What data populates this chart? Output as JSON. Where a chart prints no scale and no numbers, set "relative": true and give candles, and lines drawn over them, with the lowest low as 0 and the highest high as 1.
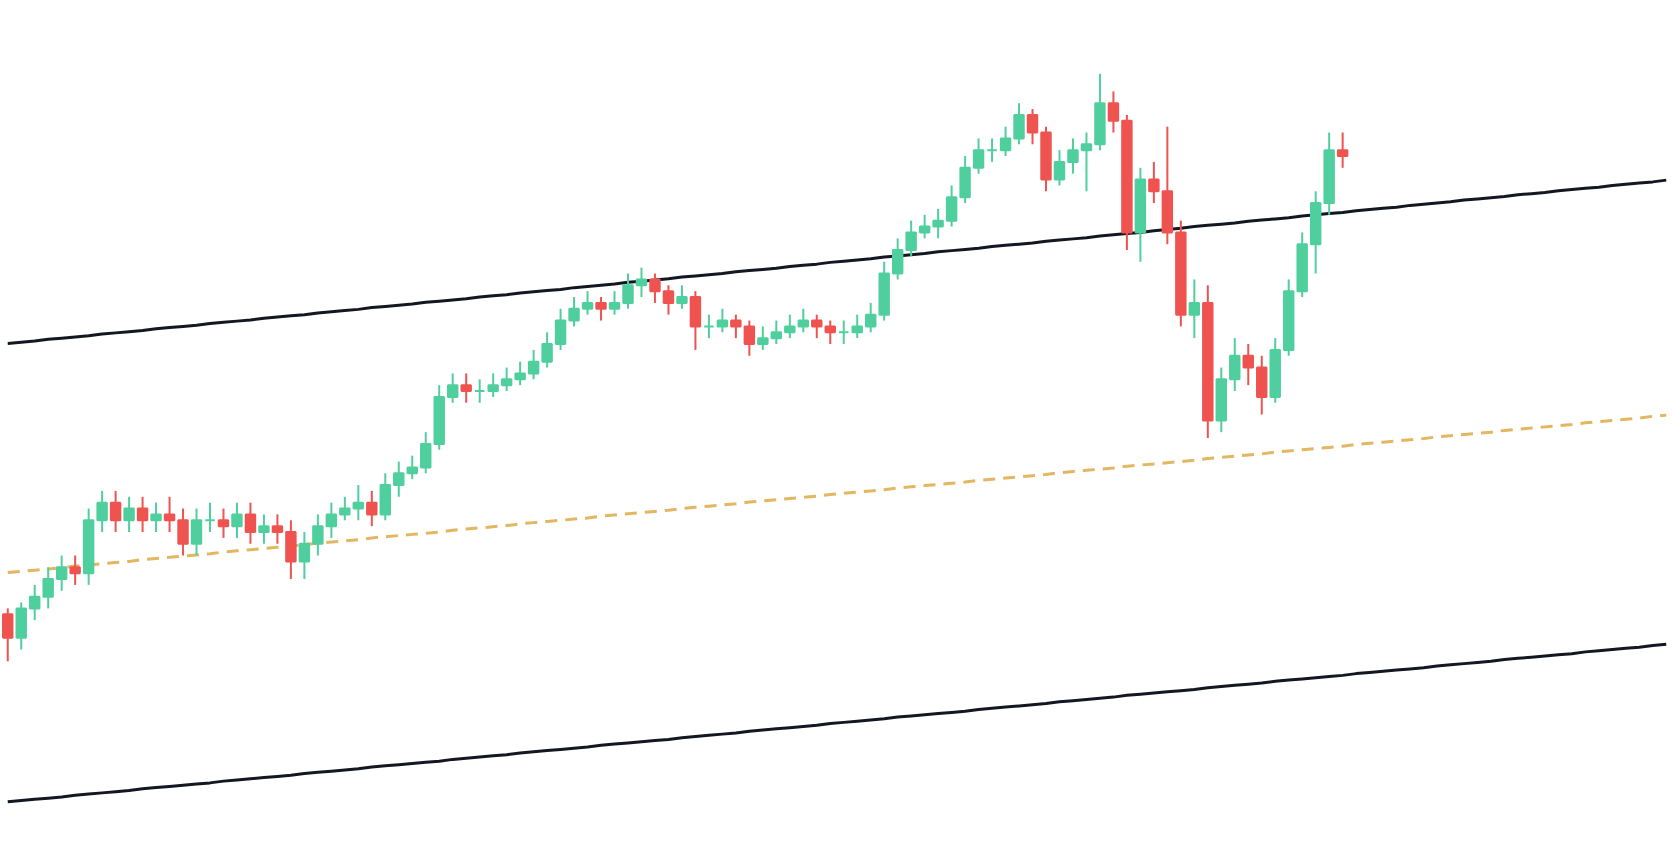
{
  "chart_data": {
    "type": "candlestick",
    "relative": true,
    "categories": [
      null,
      null,
      null,
      null,
      null,
      null,
      null,
      null,
      null,
      null,
      null,
      null,
      null,
      null,
      null,
      null,
      null,
      null,
      null,
      null,
      null,
      null,
      null,
      null,
      null,
      null,
      null,
      null,
      null,
      null,
      null,
      null,
      null,
      null,
      null,
      null,
      null,
      null,
      null,
      null,
      null,
      null,
      null,
      null,
      null,
      null,
      null,
      null,
      null,
      null,
      null,
      null,
      null,
      null,
      null,
      null,
      null,
      null,
      null,
      null,
      null,
      null,
      null,
      null,
      null,
      null,
      null,
      null,
      null,
      null,
      null,
      null,
      null,
      null,
      null,
      null,
      null,
      null,
      null,
      null,
      null,
      null,
      null,
      null,
      null,
      null,
      null,
      null,
      null,
      null,
      null,
      null,
      null,
      null,
      null,
      null,
      null,
      null,
      null,
      null,
      null,
      null,
      null,
      null,
      null,
      null,
      null,
      null,
      null,
      null,
      null,
      null,
      null,
      null,
      null,
      null,
      null,
      null,
      null,
      null,
      null,
      null,
      null,
      null
    ],
    "ohlc": [
      [
        0.08,
        0.09,
        0.0,
        0.04
      ],
      [
        0.04,
        0.1,
        0.02,
        0.09
      ],
      [
        0.09,
        0.13,
        0.07,
        0.11
      ],
      [
        0.11,
        0.16,
        0.09,
        0.14
      ],
      [
        0.14,
        0.18,
        0.12,
        0.16
      ],
      [
        0.16,
        0.18,
        0.13,
        0.15
      ],
      [
        0.15,
        0.26,
        0.13,
        0.24
      ],
      [
        0.24,
        0.29,
        0.22,
        0.27
      ],
      [
        0.27,
        0.29,
        0.22,
        0.24
      ],
      [
        0.24,
        0.28,
        0.22,
        0.26
      ],
      [
        0.26,
        0.28,
        0.22,
        0.24
      ],
      [
        0.24,
        0.27,
        0.22,
        0.25
      ],
      [
        0.25,
        0.28,
        0.22,
        0.24
      ],
      [
        0.24,
        0.26,
        0.18,
        0.2
      ],
      [
        0.2,
        0.26,
        0.18,
        0.24
      ],
      [
        0.24,
        0.27,
        0.22,
        0.24
      ],
      [
        0.24,
        0.26,
        0.21,
        0.23
      ],
      [
        0.23,
        0.27,
        0.21,
        0.25
      ],
      [
        0.25,
        0.27,
        0.2,
        0.22
      ],
      [
        0.22,
        0.25,
        0.2,
        0.23
      ],
      [
        0.23,
        0.25,
        0.2,
        0.22
      ],
      [
        0.22,
        0.24,
        0.14,
        0.17
      ],
      [
        0.17,
        0.22,
        0.14,
        0.2
      ],
      [
        0.2,
        0.25,
        0.18,
        0.23
      ],
      [
        0.23,
        0.27,
        0.21,
        0.25
      ],
      [
        0.25,
        0.28,
        0.24,
        0.26
      ],
      [
        0.26,
        0.3,
        0.24,
        0.27
      ],
      [
        0.27,
        0.29,
        0.23,
        0.25
      ],
      [
        0.25,
        0.32,
        0.24,
        0.3
      ],
      [
        0.3,
        0.34,
        0.28,
        0.32
      ],
      [
        0.32,
        0.35,
        0.31,
        0.33
      ],
      [
        0.33,
        0.39,
        0.32,
        0.37
      ],
      [
        0.37,
        0.47,
        0.36,
        0.45
      ],
      [
        0.45,
        0.49,
        0.44,
        0.47
      ],
      [
        0.47,
        0.49,
        0.44,
        0.46
      ],
      [
        0.46,
        0.48,
        0.44,
        0.46
      ],
      [
        0.46,
        0.49,
        0.45,
        0.47
      ],
      [
        0.47,
        0.5,
        0.46,
        0.48
      ],
      [
        0.48,
        0.51,
        0.47,
        0.49
      ],
      [
        0.49,
        0.53,
        0.48,
        0.51
      ],
      [
        0.51,
        0.56,
        0.5,
        0.54
      ],
      [
        0.54,
        0.6,
        0.53,
        0.58
      ],
      [
        0.58,
        0.62,
        0.57,
        0.6
      ],
      [
        0.6,
        0.63,
        0.59,
        0.61
      ],
      [
        0.61,
        0.62,
        0.58,
        0.6
      ],
      [
        0.6,
        0.63,
        0.59,
        0.61
      ],
      [
        0.61,
        0.66,
        0.6,
        0.64
      ],
      [
        0.64,
        0.67,
        0.62,
        0.65
      ],
      [
        0.65,
        0.66,
        0.61,
        0.63
      ],
      [
        0.63,
        0.64,
        0.59,
        0.61
      ],
      [
        0.61,
        0.64,
        0.6,
        0.62
      ],
      [
        0.62,
        0.63,
        0.53,
        0.57
      ],
      [
        0.57,
        0.59,
        0.55,
        0.57
      ],
      [
        0.57,
        0.6,
        0.56,
        0.58
      ],
      [
        0.58,
        0.59,
        0.55,
        0.57
      ],
      [
        0.57,
        0.58,
        0.52,
        0.54
      ],
      [
        0.54,
        0.57,
        0.53,
        0.55
      ],
      [
        0.55,
        0.58,
        0.54,
        0.56
      ],
      [
        0.56,
        0.59,
        0.55,
        0.57
      ],
      [
        0.57,
        0.6,
        0.56,
        0.58
      ],
      [
        0.58,
        0.59,
        0.55,
        0.57
      ],
      [
        0.57,
        0.58,
        0.54,
        0.56
      ],
      [
        0.56,
        0.58,
        0.54,
        0.56
      ],
      [
        0.56,
        0.59,
        0.55,
        0.57
      ],
      [
        0.57,
        0.61,
        0.56,
        0.59
      ],
      [
        0.59,
        0.68,
        0.58,
        0.66
      ],
      [
        0.66,
        0.72,
        0.65,
        0.7
      ],
      [
        0.7,
        0.75,
        0.69,
        0.73
      ],
      [
        0.73,
        0.76,
        0.72,
        0.74
      ],
      [
        0.74,
        0.77,
        0.72,
        0.75
      ],
      [
        0.75,
        0.81,
        0.74,
        0.79
      ],
      [
        0.79,
        0.86,
        0.78,
        0.84
      ],
      [
        0.84,
        0.89,
        0.83,
        0.87
      ],
      [
        0.87,
        0.89,
        0.85,
        0.87
      ],
      [
        0.87,
        0.91,
        0.86,
        0.89
      ],
      [
        0.89,
        0.95,
        0.88,
        0.93
      ],
      [
        0.93,
        0.94,
        0.88,
        0.9
      ],
      [
        0.9,
        0.91,
        0.8,
        0.82
      ],
      [
        0.82,
        0.87,
        0.81,
        0.85
      ],
      [
        0.85,
        0.89,
        0.83,
        0.87
      ],
      [
        0.87,
        0.9,
        0.8,
        0.88
      ],
      [
        0.88,
        1.0,
        0.87,
        0.95
      ],
      [
        0.95,
        0.97,
        0.9,
        0.92
      ],
      [
        0.92,
        0.93,
        0.7,
        0.73
      ],
      [
        0.73,
        0.84,
        0.68,
        0.82
      ],
      [
        0.82,
        0.85,
        0.78,
        0.8
      ],
      [
        0.8,
        0.91,
        0.71,
        0.73
      ],
      [
        0.73,
        0.75,
        0.57,
        0.59
      ],
      [
        0.59,
        0.65,
        0.55,
        0.61
      ],
      [
        0.61,
        0.64,
        0.38,
        0.41
      ],
      [
        0.41,
        0.5,
        0.39,
        0.48
      ],
      [
        0.48,
        0.55,
        0.46,
        0.52
      ],
      [
        0.52,
        0.54,
        0.47,
        0.5
      ],
      [
        0.5,
        0.52,
        0.42,
        0.45
      ],
      [
        0.45,
        0.55,
        0.44,
        0.53
      ],
      [
        0.53,
        0.65,
        0.52,
        0.63
      ],
      [
        0.63,
        0.73,
        0.62,
        0.71
      ],
      [
        0.71,
        0.8,
        0.66,
        0.78
      ],
      [
        0.78,
        0.9,
        0.76,
        0.87
      ],
      [
        0.87,
        0.9,
        0.84,
        0.86
      ],
      null,
      null,
      null,
      null,
      null,
      null,
      null,
      null,
      null,
      null,
      null,
      null,
      null,
      null,
      null,
      null,
      null,
      null,
      null,
      null,
      null,
      null,
      null,
      null
    ],
    "colors": [
      "#ef5350",
      "#50cf9e",
      "#50cf9e",
      "#50cf9e",
      "#50cf9e",
      "#ef5350",
      "#50cf9e",
      "#50cf9e",
      "#ef5350",
      "#50cf9e",
      "#ef5350",
      "#50cf9e",
      "#ef5350",
      "#ef5350",
      "#50cf9e",
      "#50cf9e",
      "#ef5350",
      "#50cf9e",
      "#ef5350",
      "#50cf9e",
      "#ef5350",
      "#ef5350",
      "#50cf9e",
      "#50cf9e",
      "#50cf9e",
      "#50cf9e",
      "#50cf9e",
      "#ef5350",
      "#50cf9e",
      "#50cf9e",
      "#50cf9e",
      "#50cf9e",
      "#50cf9e",
      "#50cf9e",
      "#ef5350",
      "#50cf9e",
      "#50cf9e",
      "#50cf9e",
      "#50cf9e",
      "#50cf9e",
      "#50cf9e",
      "#50cf9e",
      "#50cf9e",
      "#50cf9e",
      "#ef5350",
      "#50cf9e",
      "#50cf9e",
      "#50cf9e",
      "#ef5350",
      "#ef5350",
      "#50cf9e",
      "#ef5350",
      "#50cf9e",
      "#50cf9e",
      "#ef5350",
      "#ef5350",
      "#50cf9e",
      "#50cf9e",
      "#50cf9e",
      "#50cf9e",
      "#ef5350",
      "#ef5350",
      "#50cf9e",
      "#50cf9e",
      "#50cf9e",
      "#50cf9e",
      "#50cf9e",
      "#50cf9e",
      "#50cf9e",
      "#50cf9e",
      "#50cf9e",
      "#50cf9e",
      "#50cf9e",
      "#50cf9e",
      "#50cf9e",
      "#50cf9e",
      "#ef5350",
      "#ef5350",
      "#50cf9e",
      "#50cf9e",
      "#50cf9e",
      "#50cf9e",
      "#ef5350",
      "#ef5350",
      "#50cf9e",
      "#ef5350",
      "#ef5350",
      "#ef5350",
      "#50cf9e",
      "#ef5350",
      "#50cf9e",
      "#50cf9e",
      "#ef5350",
      "#ef5350",
      "#50cf9e",
      "#50cf9e",
      "#50cf9e",
      "#50cf9e",
      "#50cf9e",
      "#ef5350",
      null,
      null,
      null,
      null,
      null,
      null,
      null,
      null,
      null,
      null,
      null,
      null,
      null,
      null,
      null,
      null,
      null,
      null,
      null,
      null,
      null,
      null,
      null,
      null
    ],
    "series": [
      {
        "type": "line",
        "color": "#131722",
        "line_style": "solid",
        "values": [
          0.541,
          0.543,
          0.545,
          0.548,
          0.55,
          0.552,
          0.554,
          0.557,
          0.559,
          0.561,
          0.563,
          0.566,
          0.568,
          0.57,
          0.572,
          0.575,
          0.577,
          0.579,
          0.581,
          0.584,
          0.586,
          0.588,
          0.59,
          0.593,
          0.595,
          0.597,
          0.599,
          0.602,
          0.604,
          0.606,
          0.608,
          0.611,
          0.613,
          0.615,
          0.617,
          0.62,
          0.622,
          0.624,
          0.627,
          0.629,
          0.631,
          0.633,
          0.636,
          0.638,
          0.64,
          0.642,
          0.645,
          0.647,
          0.649,
          0.651,
          0.654,
          0.656,
          0.658,
          0.66,
          0.663,
          0.665,
          0.667,
          0.669,
          0.672,
          0.674,
          0.676,
          0.679,
          0.681,
          0.683,
          0.685,
          0.688,
          0.69,
          0.692,
          0.694,
          0.697,
          0.699,
          0.701,
          0.703,
          0.706,
          0.708,
          0.71,
          0.712,
          0.715,
          0.717,
          0.719,
          0.721,
          0.724,
          0.726,
          0.728,
          0.73,
          0.733,
          0.735,
          0.737,
          0.74,
          0.742,
          0.744,
          0.746,
          0.749,
          0.751,
          0.753,
          0.755,
          0.758,
          0.76,
          0.762,
          0.764,
          0.767,
          0.769,
          0.771,
          0.773,
          0.776,
          0.778,
          0.78,
          0.782,
          0.785,
          0.787,
          0.789,
          0.791,
          0.794,
          0.796,
          0.798,
          0.801,
          0.803,
          0.805,
          0.807,
          0.81,
          0.812,
          0.814,
          0.816,
          0.819
        ]
      },
      {
        "type": "line",
        "color": "#e3b661",
        "line_style": "dashed",
        "values": [
          0.151,
          0.153,
          0.155,
          0.157,
          0.159,
          0.162,
          0.164,
          0.166,
          0.168,
          0.17,
          0.173,
          0.175,
          0.177,
          0.179,
          0.181,
          0.183,
          0.186,
          0.188,
          0.19,
          0.192,
          0.194,
          0.196,
          0.199,
          0.201,
          0.203,
          0.205,
          0.207,
          0.21,
          0.212,
          0.214,
          0.216,
          0.218,
          0.22,
          0.223,
          0.225,
          0.227,
          0.229,
          0.231,
          0.234,
          0.236,
          0.238,
          0.24,
          0.242,
          0.244,
          0.247,
          0.249,
          0.251,
          0.253,
          0.255,
          0.257,
          0.26,
          0.262,
          0.264,
          0.266,
          0.268,
          0.271,
          0.273,
          0.275,
          0.277,
          0.279,
          0.281,
          0.284,
          0.286,
          0.288,
          0.29,
          0.292,
          0.295,
          0.297,
          0.299,
          0.301,
          0.303,
          0.305,
          0.308,
          0.31,
          0.312,
          0.314,
          0.316,
          0.318,
          0.321,
          0.323,
          0.325,
          0.327,
          0.329,
          0.332,
          0.334,
          0.336,
          0.338,
          0.34,
          0.342,
          0.345,
          0.347,
          0.349,
          0.351,
          0.353,
          0.356,
          0.358,
          0.36,
          0.362,
          0.364,
          0.366,
          0.369,
          0.371,
          0.373,
          0.375,
          0.377,
          0.379,
          0.382,
          0.384,
          0.386,
          0.388,
          0.39,
          0.393,
          0.395,
          0.397,
          0.399,
          0.401,
          0.403,
          0.406,
          0.408,
          0.41,
          0.412,
          0.414,
          0.417,
          0.419
        ]
      },
      {
        "type": "line",
        "color": "#131722",
        "line_style": "solid",
        "values": [
          -0.239,
          -0.237,
          -0.235,
          -0.233,
          -0.231,
          -0.228,
          -0.226,
          -0.224,
          -0.222,
          -0.22,
          -0.217,
          -0.215,
          -0.213,
          -0.211,
          -0.209,
          -0.207,
          -0.204,
          -0.202,
          -0.2,
          -0.198,
          -0.196,
          -0.194,
          -0.191,
          -0.189,
          -0.187,
          -0.185,
          -0.183,
          -0.18,
          -0.178,
          -0.176,
          -0.174,
          -0.172,
          -0.17,
          -0.167,
          -0.165,
          -0.163,
          -0.161,
          -0.159,
          -0.156,
          -0.154,
          -0.152,
          -0.15,
          -0.148,
          -0.146,
          -0.143,
          -0.141,
          -0.139,
          -0.137,
          -0.135,
          -0.133,
          -0.13,
          -0.128,
          -0.126,
          -0.124,
          -0.122,
          -0.119,
          -0.117,
          -0.115,
          -0.113,
          -0.111,
          -0.109,
          -0.106,
          -0.104,
          -0.102,
          -0.1,
          -0.098,
          -0.095,
          -0.093,
          -0.091,
          -0.089,
          -0.087,
          -0.085,
          -0.082,
          -0.08,
          -0.078,
          -0.076,
          -0.074,
          -0.072,
          -0.069,
          -0.067,
          -0.065,
          -0.063,
          -0.061,
          -0.058,
          -0.056,
          -0.054,
          -0.052,
          -0.05,
          -0.048,
          -0.045,
          -0.043,
          -0.041,
          -0.039,
          -0.037,
          -0.034,
          -0.032,
          -0.03,
          -0.028,
          -0.026,
          -0.024,
          -0.021,
          -0.019,
          -0.017,
          -0.015,
          -0.013,
          -0.011,
          -0.008,
          -0.006,
          -0.004,
          -0.002,
          0.0,
          0.003,
          0.005,
          0.007,
          0.009,
          0.011,
          0.013,
          0.016,
          0.018,
          0.02,
          0.022,
          0.024,
          0.027,
          0.029
        ]
      }
    ]
  }
}
